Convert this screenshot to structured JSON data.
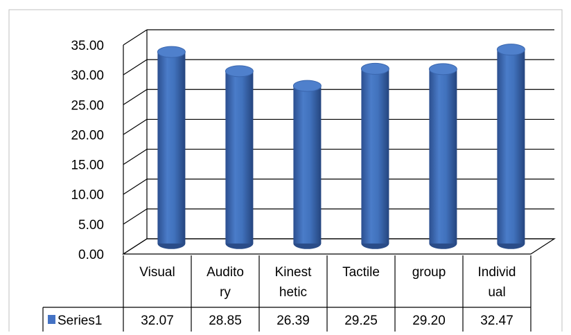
{
  "chart_data": {
    "type": "bar",
    "style": "3d-cylinder",
    "categories": [
      {
        "lines": [
          "Visual"
        ]
      },
      {
        "lines": [
          "Audito",
          "ry"
        ]
      },
      {
        "lines": [
          "Kinest",
          "hetic"
        ]
      },
      {
        "lines": [
          "Tactile"
        ]
      },
      {
        "lines": [
          "group"
        ]
      },
      {
        "lines": [
          "Individ",
          "ual"
        ]
      }
    ],
    "series": [
      {
        "name": "Series1",
        "color": "#4472C4",
        "values": [
          32.07,
          28.85,
          26.39,
          29.25,
          29.2,
          32.47
        ],
        "value_labels": [
          "32.07",
          "28.85",
          "26.39",
          "29.25",
          "29.20",
          "32.47"
        ]
      }
    ],
    "ylim": [
      0,
      35
    ],
    "ytick_labels": [
      "0.00",
      "5.00",
      "10.00",
      "15.00",
      "20.00",
      "25.00",
      "30.00",
      "35.00"
    ],
    "grid": true,
    "data_table": true,
    "legend_in_data_table": true
  }
}
